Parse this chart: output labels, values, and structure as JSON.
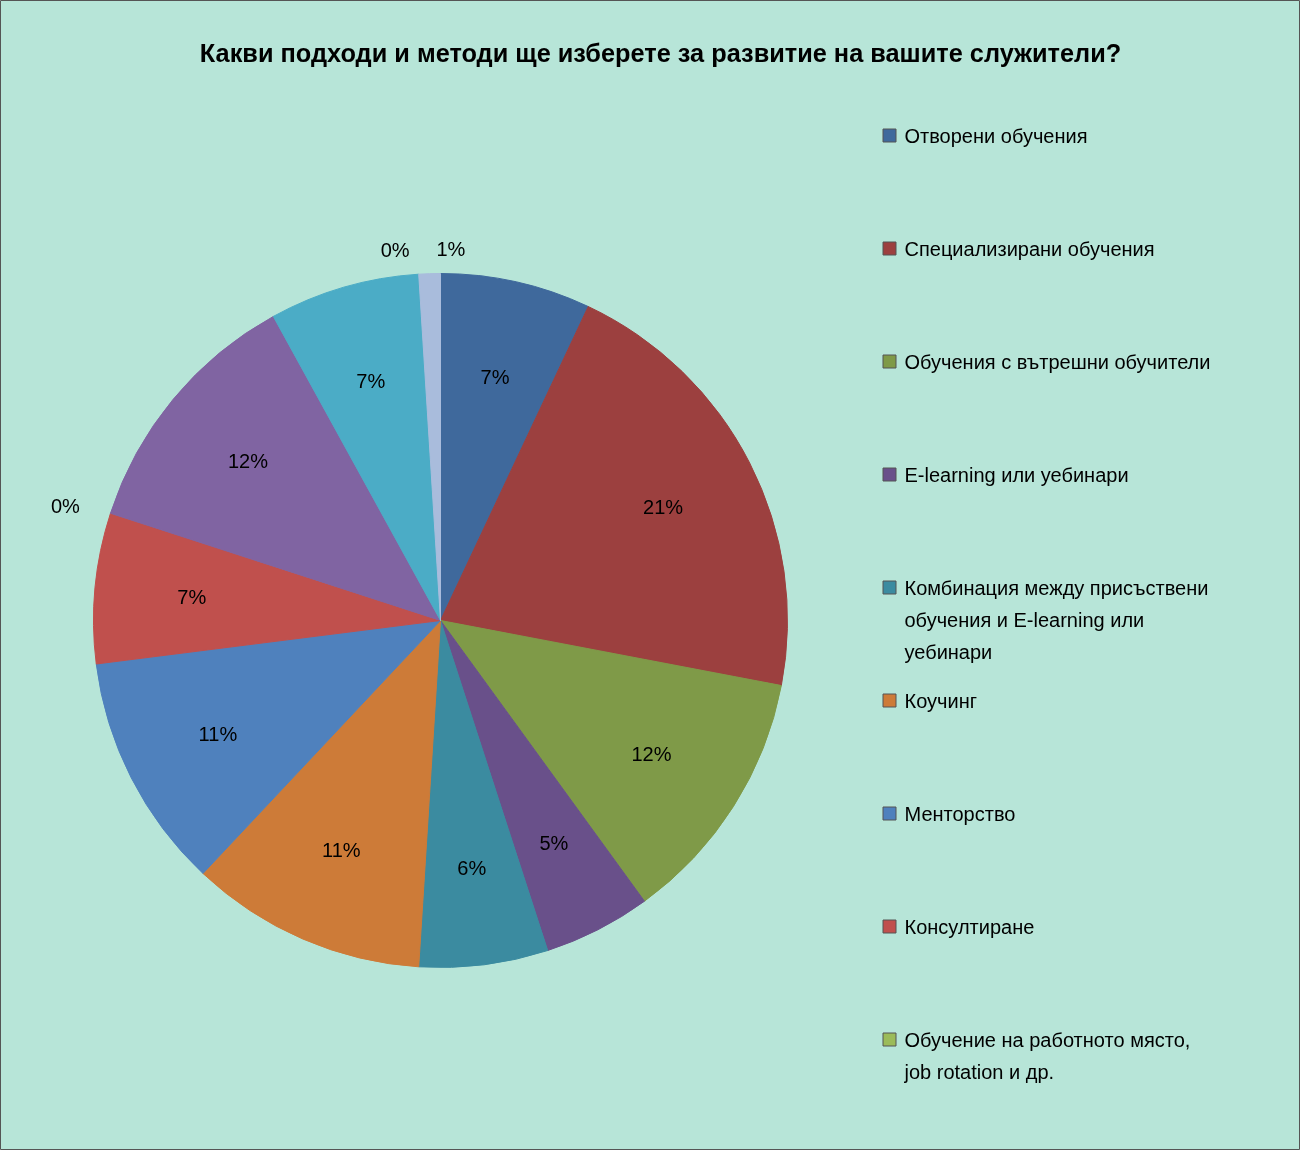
{
  "chart_data": {
    "type": "pie",
    "title": "Какви подходи и методи ще изберете за развитие на вашите служители?",
    "categories": [
      "Отворени обучения",
      "Специализирани обучения",
      "Обучения с вътрешни обучители",
      "E-learning или уебинари",
      "Комбинация между присъствени обучения и E-learning или уебинари",
      "Коучинг",
      "Менторство",
      "Консултиране",
      "Обучение на работното място, job rotation и др.",
      null,
      null,
      null,
      null
    ],
    "values": [
      7,
      21,
      12,
      5,
      6,
      11,
      11,
      7,
      0,
      12,
      7,
      0,
      1
    ],
    "value_labels": [
      "7%",
      "21%",
      "12%",
      "5%",
      "6%",
      "11%",
      "11%",
      "7%",
      "0%",
      "12%",
      "7%",
      "0%",
      "1%"
    ],
    "colors": [
      "#3f699c",
      "#9c403f",
      "#7f9a48",
      "#69508a",
      "#3b8ba0",
      "#cd7b38",
      "#4f81bd",
      "#c0504d",
      "#9bbb59",
      "#8064a2",
      "#4bacc6",
      "#f79646",
      "#a9bcdc"
    ],
    "legend": "right"
  }
}
